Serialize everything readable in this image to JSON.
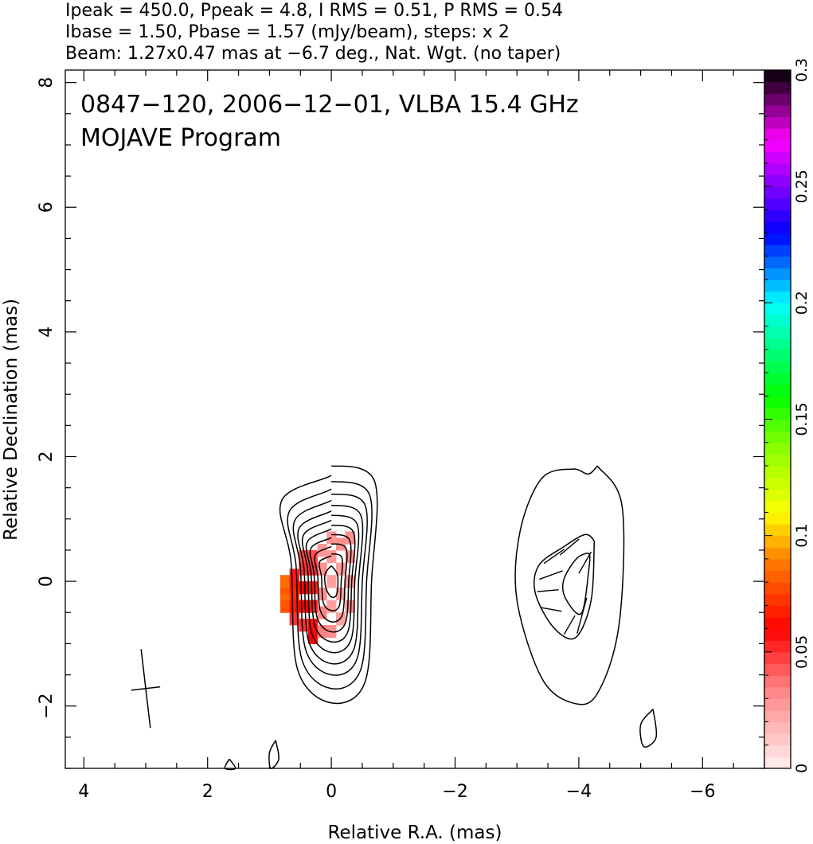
{
  "header": {
    "line1": "Ipeak = 450.0, Ppeak = 4.8, I RMS = 0.51, P RMS = 0.54",
    "line2": "Ibase = 1.50, Pbase = 1.57 (mJy/beam), steps: x 2",
    "line3": "Beam: 1.27x0.47 mas at −6.7 deg., Nat. Wgt. (no taper)"
  },
  "chart_data": {
    "type": "heatmap",
    "title": "0847−120, 2006−12−01, VLBA 15.4 GHz",
    "subtitle": "MOJAVE Program",
    "xlabel": "Relative R.A. (mas)",
    "ylabel": "Relative Declination (mas)",
    "xlim": [
      4.3,
      -7.0
    ],
    "ylim": [
      -3.0,
      8.2
    ],
    "x_ticks": [
      {
        "value": 4,
        "label": "4"
      },
      {
        "value": 2,
        "label": "2"
      },
      {
        "value": 0,
        "label": "0"
      },
      {
        "value": -2,
        "label": "−2"
      },
      {
        "value": -4,
        "label": "−4"
      },
      {
        "value": -6,
        "label": "−6"
      }
    ],
    "y_ticks": [
      {
        "value": -2,
        "label": "−2"
      },
      {
        "value": 0,
        "label": "0"
      },
      {
        "value": 2,
        "label": "2"
      },
      {
        "value": 4,
        "label": "4"
      },
      {
        "value": 6,
        "label": "6"
      },
      {
        "value": 8,
        "label": "8"
      }
    ],
    "colorbar": {
      "range": [
        0,
        0.3
      ],
      "ticks": [
        {
          "value": 0,
          "label": "0"
        },
        {
          "value": 0.05,
          "label": "0.05"
        },
        {
          "value": 0.1,
          "label": "0.1"
        },
        {
          "value": 0.15,
          "label": "0.15"
        },
        {
          "value": 0.2,
          "label": "0.2"
        },
        {
          "value": 0.25,
          "label": "0.25"
        },
        {
          "value": 0.3,
          "label": "0.3"
        }
      ],
      "stops": [
        {
          "value": 0.0,
          "color": "#fff0f0"
        },
        {
          "value": 0.035,
          "color": "#ff8080"
        },
        {
          "value": 0.06,
          "color": "#ff0000"
        },
        {
          "value": 0.09,
          "color": "#ff8000"
        },
        {
          "value": 0.11,
          "color": "#ffff00"
        },
        {
          "value": 0.14,
          "color": "#80ff00"
        },
        {
          "value": 0.16,
          "color": "#00ff00"
        },
        {
          "value": 0.2,
          "color": "#00ffff"
        },
        {
          "value": 0.23,
          "color": "#0000ff"
        },
        {
          "value": 0.25,
          "color": "#8000ff"
        },
        {
          "value": 0.27,
          "color": "#ff00ff"
        },
        {
          "value": 0.3,
          "color": "#000000"
        }
      ]
    },
    "beam": {
      "ra": 3.0,
      "dec": -1.72,
      "major": 1.27,
      "minor": 0.47,
      "pa_deg": -6.7
    },
    "components": [
      {
        "name": "core",
        "contours": [
          {
            "ra": [
              0.0,
              -0.7,
              -0.65,
              -0.55,
              0.0,
              0.55,
              0.65,
              0.8,
              0.0
            ],
            "dec": [
              1.85,
              1.6,
              0.0,
              -1.6,
              -1.95,
              -1.4,
              0.3,
              1.3,
              1.7
            ]
          },
          {
            "ra": [
              0.0,
              -0.62,
              -0.57,
              -0.48,
              0.0,
              0.48,
              0.57,
              0.68,
              0.0
            ],
            "dec": [
              1.6,
              1.38,
              0.0,
              -1.4,
              -1.72,
              -1.24,
              0.25,
              1.12,
              1.48
            ]
          },
          {
            "ra": [
              0.0,
              -0.55,
              -0.5,
              -0.42,
              0.0,
              0.42,
              0.5,
              0.59,
              0.0
            ],
            "dec": [
              1.4,
              1.21,
              0.0,
              -1.23,
              -1.5,
              -1.08,
              0.22,
              0.98,
              1.3
            ]
          },
          {
            "ra": [
              0.0,
              -0.48,
              -0.44,
              -0.37,
              0.0,
              0.37,
              0.44,
              0.52,
              0.0
            ],
            "dec": [
              1.22,
              1.05,
              0.0,
              -1.07,
              -1.32,
              -0.95,
              0.19,
              0.85,
              1.13
            ]
          },
          {
            "ra": [
              0.0,
              -0.42,
              -0.38,
              -0.32,
              0.0,
              0.32,
              0.38,
              0.45,
              0.0
            ],
            "dec": [
              1.06,
              0.91,
              0.0,
              -0.93,
              -1.14,
              -0.82,
              0.16,
              0.74,
              0.98
            ]
          },
          {
            "ra": [
              0.0,
              -0.36,
              -0.33,
              -0.27,
              0.0,
              0.27,
              0.33,
              0.39,
              0.0
            ],
            "dec": [
              0.9,
              0.78,
              0.0,
              -0.8,
              -0.97,
              -0.7,
              0.14,
              0.63,
              0.84
            ]
          },
          {
            "ra": [
              0.0,
              -0.3,
              -0.28,
              -0.23,
              0.0,
              0.23,
              0.28,
              0.33,
              0.0
            ],
            "dec": [
              0.75,
              0.65,
              0.0,
              -0.66,
              -0.81,
              -0.58,
              0.12,
              0.53,
              0.7
            ]
          },
          {
            "ra": [
              0.0,
              -0.24,
              -0.22,
              -0.18,
              0.0,
              0.18,
              0.22,
              0.26,
              0.0
            ],
            "dec": [
              0.6,
              0.52,
              0.0,
              -0.53,
              -0.65,
              -0.46,
              0.09,
              0.42,
              0.56
            ]
          },
          {
            "ra": [
              0.0,
              -0.17,
              -0.16,
              -0.13,
              0.0,
              0.13,
              0.16,
              0.19,
              0.0
            ],
            "dec": [
              0.44,
              0.38,
              0.0,
              -0.39,
              -0.47,
              -0.34,
              0.07,
              0.31,
              0.41
            ]
          },
          {
            "ra": [
              0.0,
              -0.1,
              -0.09,
              0.0,
              0.09,
              0.1,
              0.0
            ],
            "dec": [
              0.25,
              0.1,
              -0.2,
              -0.25,
              -0.1,
              0.12,
              0.25
            ]
          }
        ]
      },
      {
        "name": "jet",
        "contours": [
          {
            "ra": [
              -4.3,
              -4.7,
              -4.65,
              -4.3,
              -3.9,
              -3.4,
              -3.0,
              -3.05,
              -3.4,
              -3.9,
              -4.15,
              -4.3
            ],
            "dec": [
              1.85,
              1.2,
              -0.7,
              -1.8,
              -1.95,
              -1.55,
              -0.3,
              0.8,
              1.65,
              1.8,
              1.72,
              1.85
            ]
          },
          {
            "ra": [
              -4.25,
              -4.2,
              -3.95,
              -3.6,
              -3.3,
              -3.35,
              -3.75,
              -4.1,
              -4.25
            ],
            "dec": [
              0.65,
              -0.3,
              -0.9,
              -0.75,
              -0.2,
              0.25,
              0.55,
              0.75,
              0.65
            ]
          },
          {
            "ra": [
              -4.18,
              -4.05,
              -3.8,
              -3.75,
              -3.95,
              -4.15,
              -4.18
            ],
            "dec": [
              0.35,
              -0.5,
              -0.3,
              0.0,
              0.35,
              0.45,
              0.35
            ]
          }
        ]
      },
      {
        "name": "noise",
        "contours": [
          {
            "ra": [
              -5.2,
              -5.25,
              -5.05,
              -5.0,
              -5.2
            ],
            "dec": [
              -2.05,
              -2.5,
              -2.65,
              -2.3,
              -2.05
            ]
          },
          {
            "ra": [
              0.9,
              0.85,
              0.98,
              1.0,
              0.9
            ],
            "dec": [
              -2.55,
              -2.85,
              -3.0,
              -2.75,
              -2.55
            ]
          },
          {
            "ra": [
              1.65,
              1.55,
              1.72,
              1.65
            ],
            "dec": [
              -2.85,
              -3.0,
              -3.0,
              -2.85
            ]
          }
        ]
      }
    ],
    "polarization_pixels": [
      {
        "ra": 0.75,
        "dec": -0.2,
        "value": 0.085
      },
      {
        "ra": 0.75,
        "dec": -0.3,
        "value": 0.085
      },
      {
        "ra": 0.75,
        "dec": -0.1,
        "value": 0.08
      },
      {
        "ra": 0.75,
        "dec": 0.0,
        "value": 0.085
      },
      {
        "ra": 0.75,
        "dec": -0.4,
        "value": 0.08
      },
      {
        "ra": 0.6,
        "dec": -0.5,
        "value": 0.065
      },
      {
        "ra": 0.6,
        "dec": -0.4,
        "value": 0.065
      },
      {
        "ra": 0.6,
        "dec": -0.2,
        "value": 0.07
      },
      {
        "ra": 0.6,
        "dec": 0.0,
        "value": 0.065
      },
      {
        "ra": 0.6,
        "dec": 0.1,
        "value": 0.055
      },
      {
        "ra": 0.6,
        "dec": -0.6,
        "value": 0.05
      },
      {
        "ra": 0.45,
        "dec": -0.7,
        "value": 0.05
      },
      {
        "ra": 0.45,
        "dec": -0.4,
        "value": 0.06
      },
      {
        "ra": 0.45,
        "dec": -0.1,
        "value": 0.06
      },
      {
        "ra": 0.45,
        "dec": 0.2,
        "value": 0.05
      },
      {
        "ra": 0.45,
        "dec": 0.4,
        "value": 0.045
      },
      {
        "ra": 0.3,
        "dec": -0.9,
        "value": 0.06
      },
      {
        "ra": 0.3,
        "dec": -0.7,
        "value": 0.058
      },
      {
        "ra": 0.3,
        "dec": -0.4,
        "value": 0.055
      },
      {
        "ra": 0.3,
        "dec": -0.1,
        "value": 0.055
      },
      {
        "ra": 0.3,
        "dec": 0.2,
        "value": 0.05
      },
      {
        "ra": 0.3,
        "dec": 0.4,
        "value": 0.045
      },
      {
        "ra": 0.15,
        "dec": -0.8,
        "value": 0.035
      },
      {
        "ra": 0.15,
        "dec": -0.5,
        "value": 0.033
      },
      {
        "ra": 0.15,
        "dec": -0.2,
        "value": 0.03
      },
      {
        "ra": 0.15,
        "dec": 0.2,
        "value": 0.03
      },
      {
        "ra": 0.15,
        "dec": 0.5,
        "value": 0.028
      },
      {
        "ra": 0.0,
        "dec": -0.8,
        "value": 0.03
      },
      {
        "ra": 0.0,
        "dec": -0.4,
        "value": 0.025
      },
      {
        "ra": 0.0,
        "dec": 0.0,
        "value": 0.025
      },
      {
        "ra": 0.0,
        "dec": 0.4,
        "value": 0.027
      },
      {
        "ra": 0.0,
        "dec": 0.7,
        "value": 0.028
      },
      {
        "ra": -0.15,
        "dec": -0.6,
        "value": 0.025
      },
      {
        "ra": -0.15,
        "dec": -0.2,
        "value": 0.024
      },
      {
        "ra": -0.15,
        "dec": 0.2,
        "value": 0.025
      },
      {
        "ra": -0.15,
        "dec": 0.6,
        "value": 0.03
      },
      {
        "ra": -0.3,
        "dec": -0.4,
        "value": 0.03
      },
      {
        "ra": -0.3,
        "dec": 0.0,
        "value": 0.027
      },
      {
        "ra": -0.3,
        "dec": 0.4,
        "value": 0.028
      },
      {
        "ra": -0.3,
        "dec": 0.7,
        "value": 0.03
      }
    ],
    "evpa_vectors": [
      {
        "ra": -3.6,
        "dec": 0.4,
        "len": 0.4,
        "angle_deg": 35
      },
      {
        "ra": -3.55,
        "dec": 0.1,
        "len": 0.4,
        "angle_deg": 20
      },
      {
        "ra": -3.5,
        "dec": -0.15,
        "len": 0.35,
        "angle_deg": 5
      },
      {
        "ra": -3.55,
        "dec": -0.45,
        "len": 0.35,
        "angle_deg": -10
      },
      {
        "ra": -3.85,
        "dec": 0.55,
        "len": 0.4,
        "angle_deg": 40
      },
      {
        "ra": -3.85,
        "dec": -0.7,
        "len": 0.35,
        "angle_deg": 60
      },
      {
        "ra": -4.05,
        "dec": -0.55,
        "len": 0.6,
        "angle_deg": 75
      },
      {
        "ra": -4.1,
        "dec": 0.3,
        "len": 0.4,
        "angle_deg": 60
      }
    ]
  }
}
